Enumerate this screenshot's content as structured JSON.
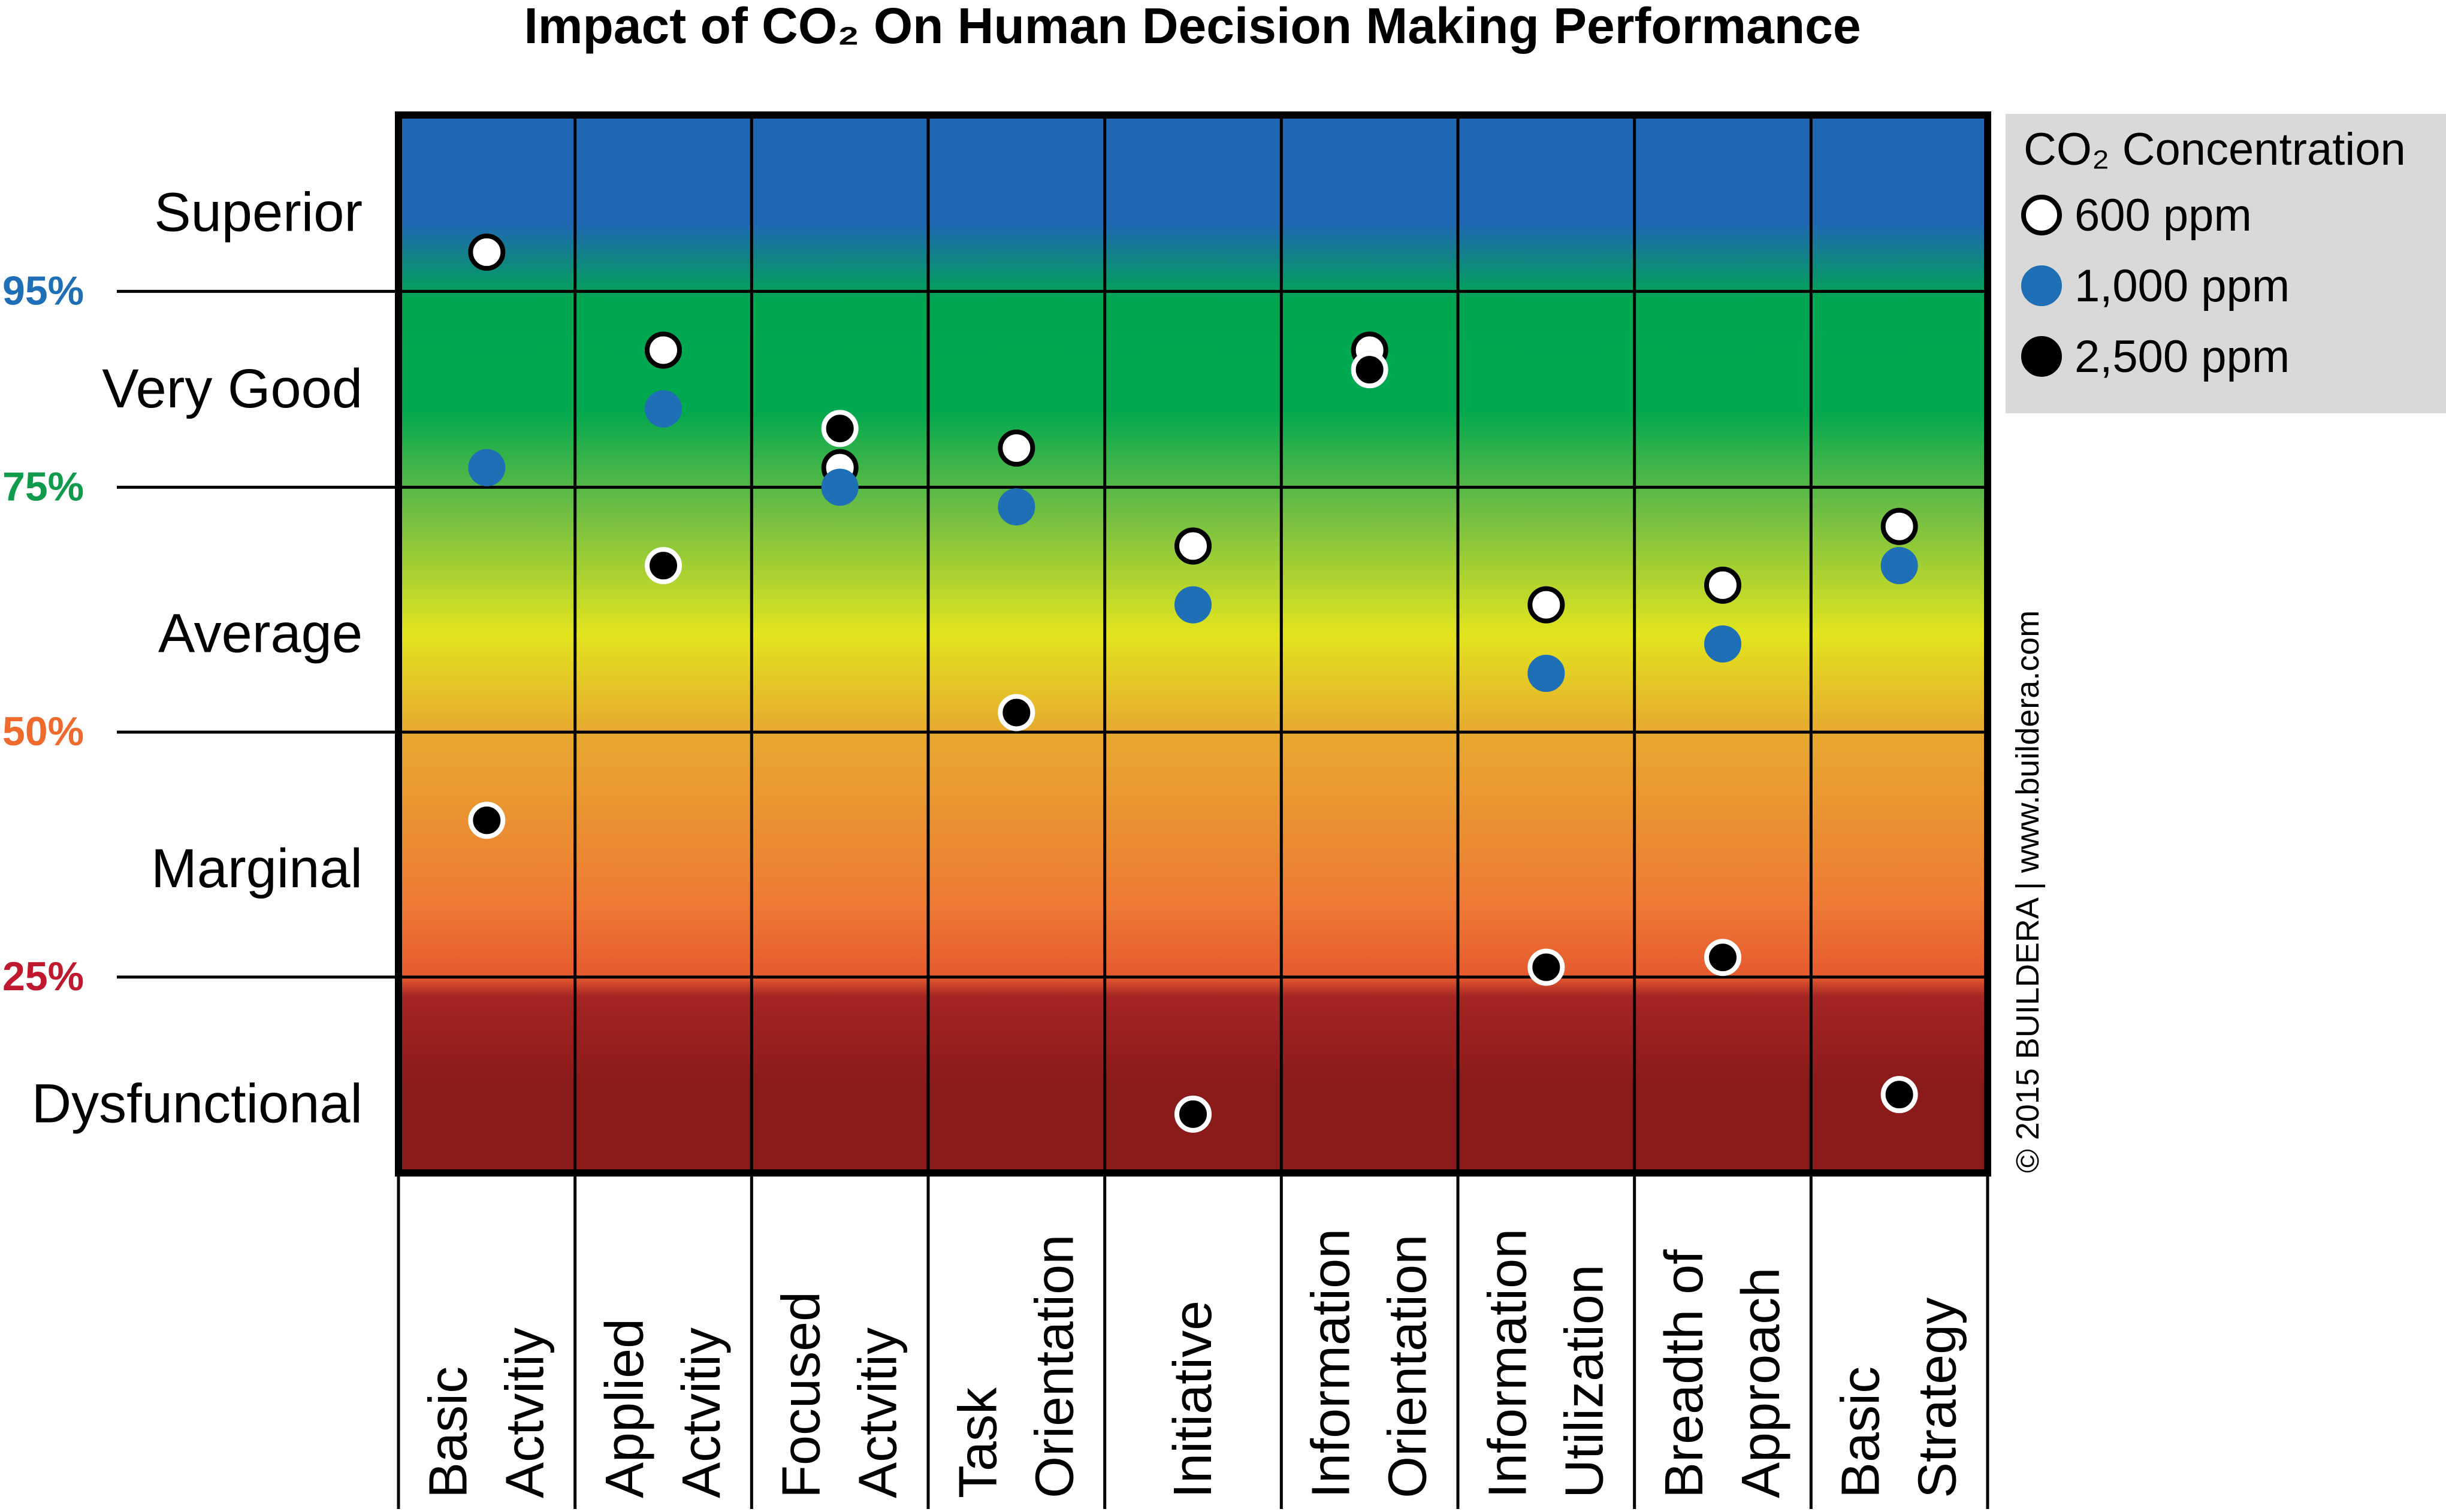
{
  "chart_data": {
    "type": "scatter",
    "title": "Impact of CO₂ On Human Decision Making Performance",
    "categories": [
      [
        "Basic",
        "Actvitiy"
      ],
      [
        "Applied",
        "Actvitiy"
      ],
      [
        "Focused",
        "Actvitiy"
      ],
      [
        "Task",
        "Orientation"
      ],
      [
        "Initiative"
      ],
      [
        "Information",
        "Orientation"
      ],
      [
        "Information",
        "Utilization"
      ],
      [
        "Breadth of",
        "Approach"
      ],
      [
        "Basic",
        "Strategy"
      ]
    ],
    "performance_levels": [
      {
        "label": "Superior",
        "value": 103
      },
      {
        "label": "Very Good",
        "value": 85
      },
      {
        "label": "Average",
        "value": 60
      },
      {
        "label": "Marginal",
        "value": 36
      },
      {
        "label": "Dysfunctional",
        "value": 12
      }
    ],
    "thresholds": [
      {
        "label": "95%",
        "value": 95,
        "color": "#1f6fb6"
      },
      {
        "label": "75%",
        "value": 75,
        "color": "#0f9a4c"
      },
      {
        "label": "50%",
        "value": 50,
        "color": "#ef6b2d"
      },
      {
        "label": "25%",
        "value": 25,
        "color": "#c0182e"
      }
    ],
    "ylim": [
      5,
      113
    ],
    "legend": {
      "title": "CO₂ Concentration",
      "placement": "right"
    },
    "series": [
      {
        "name": "600 ppm",
        "fill": "#ffffff",
        "stroke": "#000000",
        "values": [
          99,
          89,
          77,
          79,
          69,
          89,
          63,
          65,
          71
        ]
      },
      {
        "name": "1,000 ppm",
        "fill": "#1f6fb6",
        "stroke": "#1f6fb6",
        "values": [
          77,
          83,
          75,
          73,
          63,
          87,
          56,
          59,
          67
        ]
      },
      {
        "name": "2,500 ppm",
        "fill": "#000000",
        "stroke": "#ffffff",
        "values": [
          41,
          67,
          81,
          52,
          11,
          87,
          26,
          27,
          13
        ]
      }
    ],
    "gradient_stops": [
      {
        "value": 113,
        "color": "#1f66b3"
      },
      {
        "value": 102,
        "color": "#1f66b3"
      },
      {
        "value": 94,
        "color": "#00a750"
      },
      {
        "value": 83,
        "color": "#00a84f"
      },
      {
        "value": 73,
        "color": "#6bbd45"
      },
      {
        "value": 60,
        "color": "#e2e41e"
      },
      {
        "value": 50,
        "color": "#e7a92f"
      },
      {
        "value": 33,
        "color": "#ee7c34"
      },
      {
        "value": 25,
        "color": "#e65a2f"
      },
      {
        "value": 23,
        "color": "#a42524"
      },
      {
        "value": 14,
        "color": "#8b1a1a"
      },
      {
        "value": 5,
        "color": "#8b1a1a"
      }
    ],
    "copyright": "© 2015 BUILDERA | www.buildera.com",
    "legend_bg": "#d9d9d9"
  }
}
